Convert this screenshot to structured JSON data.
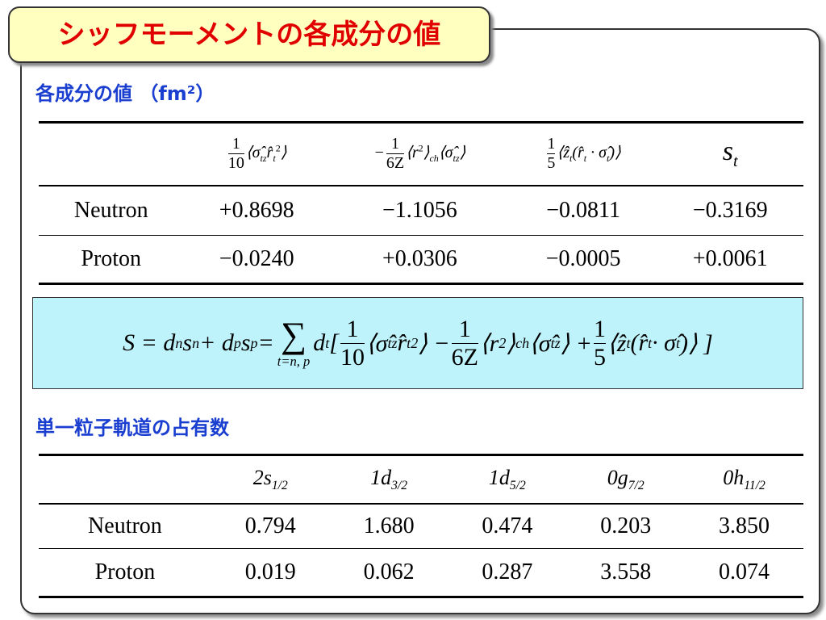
{
  "title": "シッフモーメントの各成分の値",
  "section1": {
    "heading": "各成分の値 （fm²）",
    "table": {
      "header": [
        {
          "parts": [
            {
              "num": "1",
              "den": "10"
            },
            {
              "text": "⟨σ̂"
            },
            {
              "sub": "tz"
            },
            {
              "text": "r̂"
            },
            {
              "sub": "t"
            },
            {
              "sup": "2"
            },
            {
              "text": "⟩"
            }
          ]
        },
        {
          "parts": [
            {
              "text": "−"
            },
            {
              "num": "1",
              "den": "6Z"
            },
            {
              "text": "⟨r"
            },
            {
              "sup": "2"
            },
            {
              "text": "⟩"
            },
            {
              "sub": "ch"
            },
            {
              "text": "⟨σ̂"
            },
            {
              "sub": "tz"
            },
            {
              "text": "⟩"
            }
          ]
        },
        {
          "parts": [
            {
              "num": "1",
              "den": "5"
            },
            {
              "text": "⟨ẑ"
            },
            {
              "sub": "t"
            },
            {
              "text": "(r̂"
            },
            {
              "sub": "t"
            },
            {
              "text": " · σ̂"
            },
            {
              "sub": "t"
            },
            {
              "text": ")⟩"
            }
          ]
        },
        {
          "parts": [
            {
              "text": "s"
            },
            {
              "sub": "t"
            }
          ]
        }
      ],
      "rows": [
        [
          "Neutron",
          "+0.8698",
          "−1.1056",
          "−0.0811",
          "−0.3169"
        ],
        [
          "Proton",
          "−0.0240",
          "+0.0306",
          "−0.0005",
          "+0.0061"
        ]
      ]
    }
  },
  "formula": {
    "parts": [
      {
        "text": "S = d"
      },
      {
        "sub": "n"
      },
      {
        "text": "s"
      },
      {
        "sub": "n"
      },
      {
        "text": " + d"
      },
      {
        "sub": "p"
      },
      {
        "text": "s"
      },
      {
        "sub": "p"
      },
      {
        "text": " = "
      },
      {
        "op": "∑",
        "under": "t=n, p"
      },
      {
        "text": "d"
      },
      {
        "sub": "t"
      },
      {
        "text": " [ "
      },
      {
        "num": "1",
        "den": "10"
      },
      {
        "text": "⟨σ̂"
      },
      {
        "sub": "tz"
      },
      {
        "text": "r̂"
      },
      {
        "sub": "t"
      },
      {
        "sup": "2"
      },
      {
        "text": "⟩ − "
      },
      {
        "num": "1",
        "den": "6Z"
      },
      {
        "text": "⟨r"
      },
      {
        "sup": "2"
      },
      {
        "text": "⟩"
      },
      {
        "sub": "ch"
      },
      {
        "text": " ⟨σ̂"
      },
      {
        "sub": "tz"
      },
      {
        "text": "⟩ + "
      },
      {
        "num": "1",
        "den": "5"
      },
      {
        "text": "⟨ẑ"
      },
      {
        "sub": "t"
      },
      {
        "text": " (r̂"
      },
      {
        "sub": "t"
      },
      {
        "text": " · σ̂"
      },
      {
        "sub": "t"
      },
      {
        "text": ")⟩ ]"
      }
    ]
  },
  "section2": {
    "heading": "単一粒子軌道の占有数",
    "table": {
      "header": [
        {
          "parts": [
            {
              "text": "2s"
            },
            {
              "sub": "1/2"
            }
          ]
        },
        {
          "parts": [
            {
              "text": "1d"
            },
            {
              "sub": "3/2"
            }
          ]
        },
        {
          "parts": [
            {
              "text": "1d"
            },
            {
              "sub": "5/2"
            }
          ]
        },
        {
          "parts": [
            {
              "text": "0g"
            },
            {
              "sub": "7/2"
            }
          ]
        },
        {
          "parts": [
            {
              "text": "0h"
            },
            {
              "sub": "11/2"
            }
          ]
        }
      ],
      "rows": [
        [
          "Neutron",
          "0.794",
          "1.680",
          "0.474",
          "0.203",
          "3.850"
        ],
        [
          "Proton",
          "0.019",
          "0.062",
          "0.287",
          "3.558",
          "0.074"
        ]
      ]
    }
  }
}
